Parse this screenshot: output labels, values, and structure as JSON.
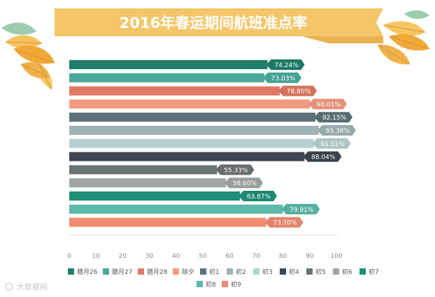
{
  "watermark": "大数据网",
  "chart_data": {
    "type": "bar",
    "orientation": "horizontal",
    "title": "2016年春运期间航班准点率",
    "xlim": [
      0,
      100
    ],
    "xticks": [
      "0",
      "10",
      "20",
      "30",
      "40",
      "50",
      "60",
      "70",
      "80",
      "90",
      "100"
    ],
    "grid": false,
    "legend_position": "bottom",
    "categories": [
      "腊月26",
      "腊月27",
      "腊月28",
      "除夕",
      "初1",
      "初2",
      "初3",
      "初4",
      "初5",
      "初6",
      "初7",
      "初8",
      "初9"
    ],
    "values": [
      74.24,
      73.03,
      78.8,
      90.01,
      92.15,
      93.38,
      91.51,
      88.04,
      55.33,
      58.6,
      63.87,
      79.91,
      73.7
    ],
    "labels": [
      "74.24%",
      "73.03%",
      "78.80%",
      "90.01%",
      "92.15%",
      "93.38%",
      "91.51%",
      "88.04%",
      "55.33%",
      "58.60%",
      "63.87%",
      "79.91%",
      "73.70%"
    ],
    "colors": [
      "#1f7f6b",
      "#4aaa9a",
      "#e07a62",
      "#f29a80",
      "#5c7278",
      "#9fb3b5",
      "#b7cfd0",
      "#3d4750",
      "#6a7472",
      "#9fa6a4",
      "#1f8f78",
      "#5cb8a8",
      "#ef8c72"
    ]
  },
  "banner_color": "#f3c66a",
  "leaf_colors": [
    "#f0a838",
    "#f7c660",
    "#8fc3a0"
  ]
}
